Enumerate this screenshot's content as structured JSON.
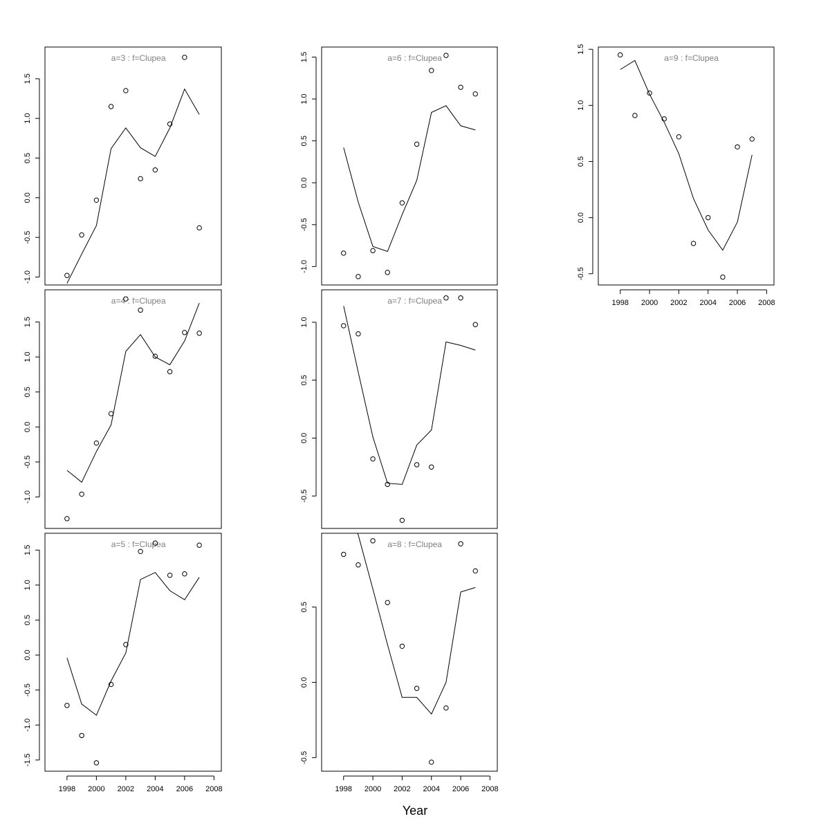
{
  "x_axis_title": "Year",
  "chart_data": [
    {
      "type": "line",
      "panel": "a=3",
      "title": "a=3  :  f=Clupea",
      "x": [
        1998,
        1999,
        2000,
        2001,
        2002,
        2003,
        2004,
        2005,
        2006,
        2007
      ],
      "series": [
        {
          "kind": "line",
          "values": [
            -1.08,
            -0.71,
            -0.35,
            0.62,
            0.88,
            0.63,
            0.52,
            0.88,
            1.37,
            1.05
          ]
        },
        {
          "kind": "points",
          "values": [
            -0.98,
            -0.47,
            -0.03,
            1.15,
            1.35,
            0.24,
            0.35,
            0.93,
            1.77,
            -0.38
          ]
        }
      ],
      "xlim": [
        1996.5,
        2008.5
      ],
      "ylim": [
        -1.1,
        1.9
      ],
      "xticks": [
        1998,
        2000,
        2002,
        2004,
        2006,
        2008
      ],
      "yticks": [
        -1.0,
        -0.5,
        0.0,
        0.5,
        1.0,
        1.5
      ],
      "ytick_labels": [
        "-1.0",
        "-0.5",
        "0.0",
        "0.5",
        "1.0",
        "1.5"
      ],
      "show_x_axis": false
    },
    {
      "type": "line",
      "panel": "a=4",
      "title": "a=4  :  f=Clupea",
      "x": [
        1998,
        1999,
        2000,
        2001,
        2002,
        2003,
        2004,
        2005,
        2006,
        2007
      ],
      "series": [
        {
          "kind": "line",
          "values": [
            -0.62,
            -0.79,
            -0.35,
            0.03,
            1.08,
            1.32,
            1.0,
            0.89,
            1.23,
            1.77
          ]
        },
        {
          "kind": "points",
          "values": [
            -1.31,
            -0.96,
            -0.23,
            0.19,
            1.83,
            1.67,
            1.01,
            0.79,
            1.35,
            1.34
          ]
        }
      ],
      "xlim": [
        1996.5,
        2008.5
      ],
      "ylim": [
        -1.45,
        1.96
      ],
      "xticks": [
        1998,
        2000,
        2002,
        2004,
        2006,
        2008
      ],
      "yticks": [
        -1.0,
        -0.5,
        0.0,
        0.5,
        1.0,
        1.5
      ],
      "ytick_labels": [
        "-1.0",
        "-0.5",
        "0.0",
        "0.5",
        "1.0",
        "1.5"
      ],
      "show_x_axis": false
    },
    {
      "type": "line",
      "panel": "a=5",
      "title": "a=5  :  f=Clupea",
      "x": [
        1998,
        1999,
        2000,
        2001,
        2002,
        2003,
        2004,
        2005,
        2006,
        2007
      ],
      "series": [
        {
          "kind": "line",
          "values": [
            -0.04,
            -0.7,
            -0.86,
            -0.37,
            0.03,
            1.08,
            1.18,
            0.92,
            0.79,
            1.11
          ]
        },
        {
          "kind": "points",
          "values": [
            -0.72,
            -1.15,
            -1.54,
            -0.42,
            0.15,
            1.48,
            1.6,
            1.14,
            1.16,
            1.57
          ]
        }
      ],
      "xlim": [
        1996.5,
        2008.5
      ],
      "ylim": [
        -1.66,
        1.74
      ],
      "xticks": [
        1998,
        2000,
        2002,
        2004,
        2006,
        2008
      ],
      "xtick_labels": [
        "1998",
        "2000",
        "2002",
        "2004",
        "2006",
        "2008"
      ],
      "yticks": [
        -1.5,
        -1.0,
        -0.5,
        0.0,
        0.5,
        1.0,
        1.5
      ],
      "ytick_labels": [
        "-1.5",
        "-1.0",
        "-0.5",
        "0.0",
        "0.5",
        "1.0",
        "1.5"
      ],
      "show_x_axis": true
    },
    {
      "type": "line",
      "panel": "a=6",
      "title": "a=6  :  f=Clupea",
      "x": [
        1998,
        1999,
        2000,
        2001,
        2002,
        2003,
        2004,
        2005,
        2006,
        2007
      ],
      "series": [
        {
          "kind": "line",
          "values": [
            0.42,
            -0.23,
            -0.76,
            -0.82,
            -0.38,
            0.03,
            0.84,
            0.92,
            0.68,
            0.63
          ]
        },
        {
          "kind": "points",
          "values": [
            -0.84,
            -1.12,
            -0.81,
            -1.07,
            -0.24,
            0.46,
            1.34,
            1.52,
            1.14,
            1.06
          ]
        }
      ],
      "xlim": [
        1996.5,
        2008.5
      ],
      "ylim": [
        -1.22,
        1.62
      ],
      "xticks": [
        1998,
        2000,
        2002,
        2004,
        2006,
        2008
      ],
      "yticks": [
        -1.0,
        -0.5,
        0.0,
        0.5,
        1.0,
        1.5
      ],
      "ytick_labels": [
        "-1.0",
        "-0.5",
        "0.0",
        "0.5",
        "1.0",
        "1.5"
      ],
      "show_x_axis": false
    },
    {
      "type": "line",
      "panel": "a=7",
      "title": "a=7  :  f=Clupea",
      "x": [
        1998,
        1999,
        2000,
        2001,
        2002,
        2003,
        2004,
        2005,
        2006,
        2007
      ],
      "series": [
        {
          "kind": "line",
          "values": [
            1.14,
            0.57,
            0.01,
            -0.39,
            -0.4,
            -0.06,
            0.07,
            0.83,
            0.8,
            0.76
          ]
        },
        {
          "kind": "points",
          "values": [
            0.97,
            0.9,
            -0.18,
            -0.4,
            -0.71,
            -0.23,
            -0.25,
            1.21,
            1.21,
            0.98
          ]
        }
      ],
      "xlim": [
        1996.5,
        2008.5
      ],
      "ylim": [
        -0.78,
        1.28
      ],
      "xticks": [
        1998,
        2000,
        2002,
        2004,
        2006,
        2008
      ],
      "yticks": [
        -0.5,
        0.0,
        0.5,
        1.0
      ],
      "ytick_labels": [
        "-0.5",
        "0.0",
        "0.5",
        "1.0"
      ],
      "show_x_axis": false
    },
    {
      "type": "line",
      "panel": "a=8",
      "title": "a=8  :  f=Clupea",
      "x": [
        1998,
        1999,
        2000,
        2001,
        2002,
        2003,
        2004,
        2005,
        2006,
        2007
      ],
      "series": [
        {
          "kind": "line",
          "values": [
            1.2,
            0.98,
            0.62,
            0.25,
            -0.1,
            -0.1,
            -0.21,
            0.0,
            0.6,
            0.63
          ]
        },
        {
          "kind": "points",
          "values": [
            0.85,
            0.78,
            0.94,
            0.53,
            0.24,
            -0.04,
            -0.53,
            -0.17,
            0.92,
            0.74
          ]
        }
      ],
      "xlim": [
        1996.5,
        2008.5
      ],
      "ylim": [
        -0.59,
        0.99
      ],
      "xticks": [
        1998,
        2000,
        2002,
        2004,
        2006,
        2008
      ],
      "xtick_labels": [
        "1998",
        "2000",
        "2002",
        "2004",
        "2006",
        "2008"
      ],
      "yticks": [
        -0.5,
        0.0,
        0.5
      ],
      "ytick_labels": [
        "-0.5",
        "0.0",
        "0.5"
      ],
      "show_x_axis": true
    },
    {
      "type": "line",
      "panel": "a=9",
      "title": "a=9  :  f=Clupea",
      "x": [
        1998,
        1999,
        2000,
        2001,
        2002,
        2003,
        2004,
        2005,
        2006,
        2007
      ],
      "series": [
        {
          "kind": "line",
          "values": [
            1.32,
            1.4,
            1.1,
            0.85,
            0.57,
            0.17,
            -0.11,
            -0.29,
            -0.04,
            0.56
          ]
        },
        {
          "kind": "points",
          "values": [
            1.45,
            0.91,
            1.11,
            0.88,
            0.72,
            -0.23,
            0.0,
            -0.53,
            0.63,
            0.7
          ]
        }
      ],
      "xlim": [
        1996.5,
        2008.5
      ],
      "ylim": [
        -0.6,
        1.52
      ],
      "xticks": [
        1998,
        2000,
        2002,
        2004,
        2006,
        2008
      ],
      "xtick_labels": [
        "1998",
        "2000",
        "2002",
        "2004",
        "2006",
        "2008"
      ],
      "yticks": [
        -0.5,
        0.0,
        0.5,
        1.0,
        1.5
      ],
      "ytick_labels": [
        "-0.5",
        "0.0",
        "0.5",
        "1.0",
        "1.5"
      ],
      "show_x_axis": true
    }
  ]
}
